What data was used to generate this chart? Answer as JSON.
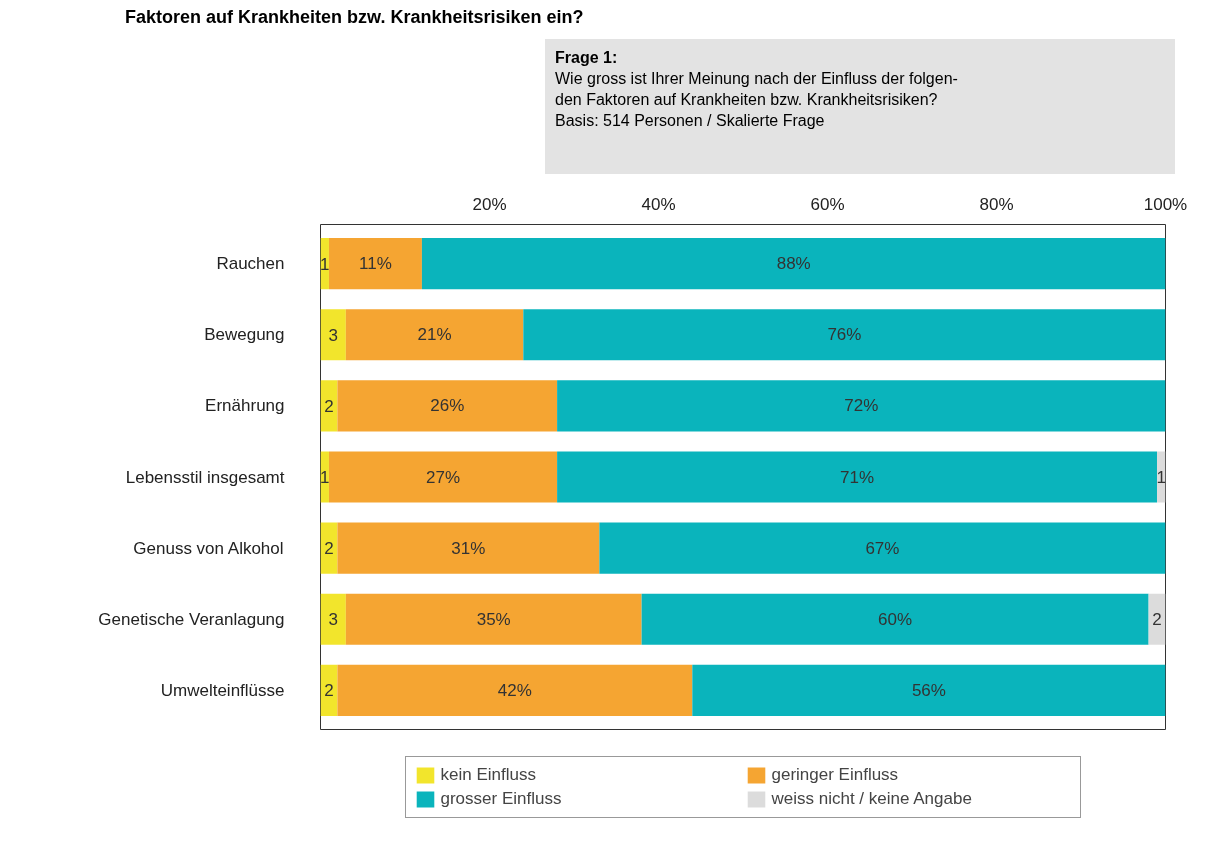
{
  "chart_data": {
    "type": "bar",
    "orientation": "horizontal",
    "stacked": true,
    "title": "Faktoren auf Krankheiten bzw. Krankheitsrisiken ein?",
    "annotations": [
      "Frage 1:\nWie gross ist Ihrer Meinung nach der Einfluss der folgen-\nden Faktoren auf Krankheiten bzw. Krankheitsrisiken?\nBasis: 514 Personen / Skalierte Frage"
    ],
    "categories": [
      "Rauchen",
      "Bewegung",
      "Ernährung",
      "Lebensstil insgesamt",
      "Genuss von Alkohol",
      "Genetische Veranlagung",
      "Umwelteinflüsse"
    ],
    "series": [
      {
        "name": "kein Einfluss",
        "color": "#f2e52c",
        "values": [
          1,
          3,
          2,
          1,
          2,
          3,
          2
        ],
        "value_labels": [
          "1",
          "3",
          "2",
          "1",
          "2",
          "3",
          "2"
        ]
      },
      {
        "name": "geringer Einfluss",
        "color": "#f5a532",
        "values": [
          11,
          21,
          26,
          27,
          31,
          35,
          42
        ],
        "value_labels": [
          "11%",
          "21%",
          "26%",
          "27%",
          "31%",
          "35%",
          "42%"
        ]
      },
      {
        "name": "grosser Einfluss",
        "color": "#0ab4bc",
        "values": [
          88,
          76,
          72,
          71,
          67,
          60,
          56
        ],
        "value_labels": [
          "88%",
          "76%",
          "72%",
          "71%",
          "67%",
          "60%",
          "56%"
        ]
      },
      {
        "name": "weiss nicht / keine Angabe",
        "color": "#dcdcdc",
        "values": [
          0,
          0,
          0,
          1,
          0,
          2,
          0
        ],
        "value_labels": [
          null,
          null,
          null,
          "1",
          null,
          "2",
          null
        ]
      }
    ],
    "xlim": [
      0,
      100
    ],
    "xticks": [
      {
        "value": 20,
        "label": "20%"
      },
      {
        "value": 40,
        "label": "40%"
      },
      {
        "value": 60,
        "label": "60%"
      },
      {
        "value": 80,
        "label": "80%"
      },
      {
        "value": 100,
        "label": "100%"
      }
    ],
    "grid": false,
    "legend": "bottom"
  }
}
